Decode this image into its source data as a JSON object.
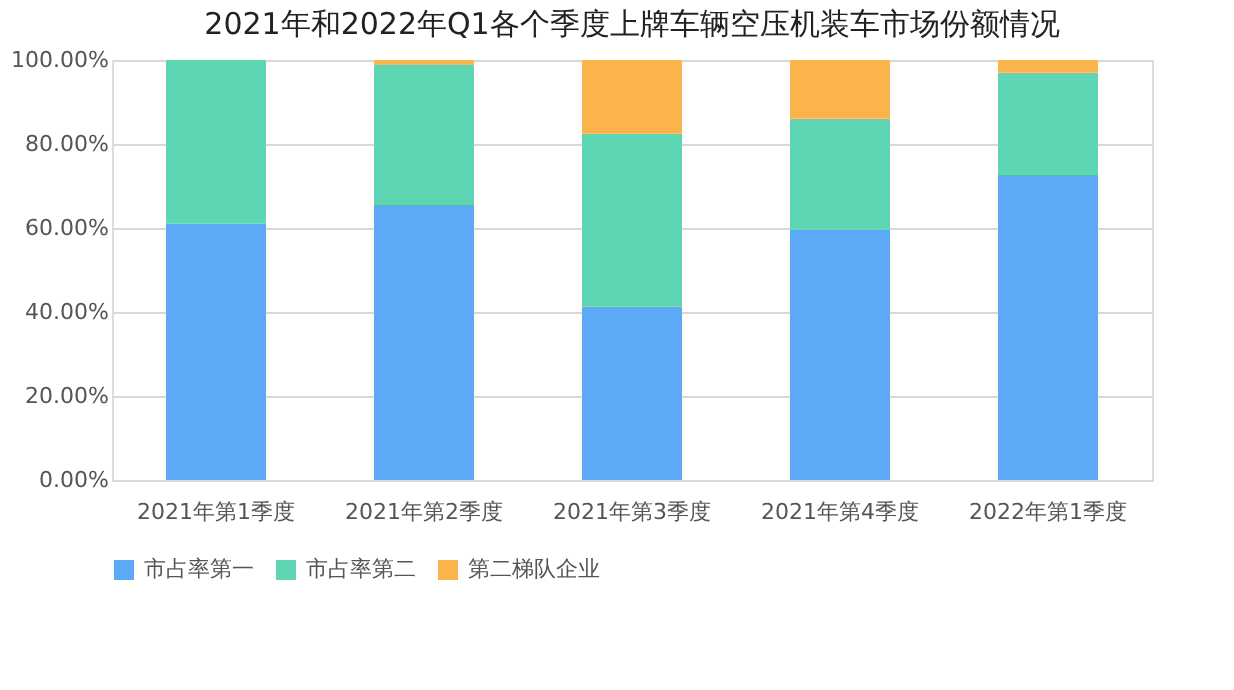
{
  "chart_data": {
    "type": "bar",
    "title": "2021年和2022年Q1各个季度上牌车辆空压机装车市场份额情况",
    "categories": [
      "2021年第1季度",
      "2021年第2季度",
      "2021年第3季度",
      "2021年第4季度",
      "2022年第1季度"
    ],
    "stacked": true,
    "series": [
      {
        "name": "市占率第一",
        "color": "#5ca9f7",
        "values": [
          61,
          65.5,
          41.3,
          59.6,
          72.6
        ]
      },
      {
        "name": "市占率第二",
        "color": "#5fd6b3",
        "values": [
          39,
          33.5,
          41.2,
          26.5,
          24.4
        ]
      },
      {
        "name": "第二梯队企业",
        "color": "#fbb44c",
        "values": [
          0,
          1,
          17.5,
          13.9,
          3
        ]
      }
    ],
    "ylim": [
      0,
      100
    ],
    "yticks": [
      {
        "value": 0,
        "label": "0.00%"
      },
      {
        "value": 20,
        "label": "20.00%"
      },
      {
        "value": 40,
        "label": "40.00%"
      },
      {
        "value": 60,
        "label": "60.00%"
      },
      {
        "value": 80,
        "label": "80.00%"
      },
      {
        "value": 100,
        "label": "100.00%"
      }
    ],
    "grid": "y",
    "legend": "bottom"
  }
}
